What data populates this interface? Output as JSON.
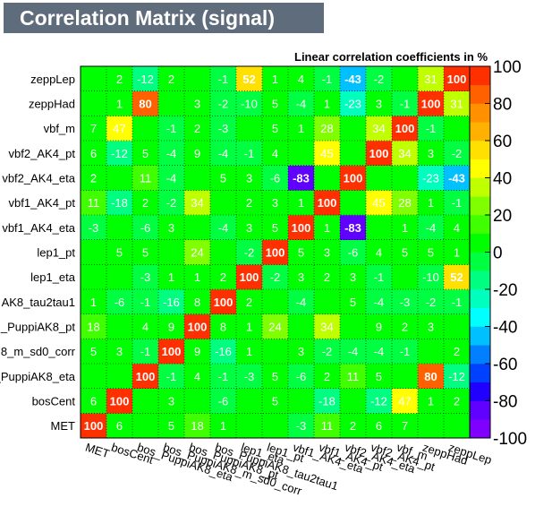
{
  "title": "Correlation Matrix (signal)",
  "subtitle": "Linear correlation coefficients in %",
  "chart_data": {
    "type": "heatmap",
    "title": "Correlation Matrix (signal)",
    "subtitle": "Linear correlation coefficients in %",
    "variables": [
      "MET",
      "bosCent",
      "bos_PuppiAK8_eta",
      "bos_PuppiAK8_m_sd0_corr",
      "bos_PuppiAK8_pt",
      "bos_PuppiAK8_tau2tau1",
      "lep1_eta",
      "lep1_pt",
      "vbf1_AK4_eta",
      "vbf1_AK4_pt",
      "vbf2_AK4_eta",
      "vbf2_AK4_pt",
      "vbf_m",
      "zeppHad",
      "zeppLep"
    ],
    "x_tick_labels": [
      "MET",
      "bosCent",
      "bos_PuppiAK8_eta",
      "bos_PuppiAK8_m_sd0_corr",
      "bos_PuppiAK8_pt",
      "bos_PuppiAK8_tau2tau1",
      "lep1_eta",
      "lep1_pt",
      "vbf1_AK4_eta",
      "vbf1_AK4_pt",
      "vbf2_AK4_eta",
      "vbf2_AK4_pt",
      "vbf_m",
      "zeppHad",
      "zeppLep"
    ],
    "y_tick_labels": [
      "MET",
      "bosCent",
      "_PuppiAK8_eta",
      "8_m_sd0_corr",
      "_PuppiAK8_pt",
      "AK8_tau2tau1",
      "lep1_eta",
      "lep1_pt",
      "vbf1_AK4_eta",
      "vbf1_AK4_pt",
      "vbf2_AK4_eta",
      "vbf2_AK4_pt",
      "vbf_m",
      "zeppHad",
      "zeppLep"
    ],
    "matrix": [
      [
        100,
        6,
        null,
        5,
        18,
        1,
        null,
        null,
        -3,
        11,
        2,
        6,
        7,
        null,
        null
      ],
      [
        6,
        100,
        null,
        3,
        null,
        -6,
        null,
        5,
        null,
        -18,
        null,
        -12,
        47,
        1,
        2
      ],
      [
        null,
        null,
        100,
        -1,
        4,
        -1,
        -3,
        5,
        -6,
        2,
        11,
        5,
        null,
        80,
        -12
      ],
      [
        5,
        3,
        -1,
        100,
        9,
        -16,
        1,
        null,
        3,
        -2,
        -4,
        -4,
        -1,
        null,
        2
      ],
      [
        18,
        null,
        4,
        9,
        100,
        8,
        1,
        24,
        null,
        34,
        null,
        9,
        2,
        3,
        null
      ],
      [
        1,
        -6,
        -1,
        -16,
        8,
        100,
        2,
        null,
        -4,
        null,
        5,
        -4,
        -3,
        -2,
        -1
      ],
      [
        null,
        null,
        -3,
        1,
        1,
        2,
        100,
        -2,
        3,
        2,
        3,
        -1,
        null,
        -10,
        52
      ],
      [
        null,
        5,
        5,
        null,
        24,
        null,
        -2,
        100,
        5,
        3,
        -6,
        4,
        5,
        5,
        1
      ],
      [
        -3,
        null,
        -6,
        3,
        null,
        -4,
        3,
        5,
        100,
        1,
        -83,
        null,
        1,
        -4,
        4
      ],
      [
        11,
        -18,
        2,
        -2,
        34,
        null,
        2,
        3,
        1,
        100,
        null,
        45,
        28,
        1,
        -1
      ],
      [
        2,
        null,
        11,
        -4,
        null,
        5,
        3,
        -6,
        -83,
        null,
        100,
        null,
        null,
        -23,
        -43
      ],
      [
        6,
        -12,
        5,
        -4,
        9,
        -4,
        -1,
        4,
        null,
        45,
        null,
        100,
        34,
        3,
        -2
      ],
      [
        7,
        47,
        null,
        -1,
        2,
        -3,
        null,
        5,
        1,
        28,
        null,
        34,
        100,
        -1,
        null
      ],
      [
        null,
        1,
        80,
        null,
        3,
        -2,
        -10,
        5,
        -4,
        1,
        -23,
        3,
        -1,
        100,
        31
      ],
      [
        null,
        2,
        -12,
        2,
        null,
        -1,
        52,
        1,
        4,
        -1,
        -43,
        -2,
        null,
        31,
        100
      ]
    ],
    "zlim": [
      -100,
      100
    ],
    "z_ticks": [
      -100,
      -80,
      -60,
      -40,
      -20,
      0,
      20,
      40,
      60,
      80,
      100
    ],
    "palette": [
      "#8000ff",
      "#6000ff",
      "#2000ff",
      "#0040ff",
      "#0080ff",
      "#00c0ff",
      "#00ffff",
      "#00ffbf",
      "#00ff80",
      "#00ff40",
      "#00ff00",
      "#40ff00",
      "#80ff00",
      "#c0ff00",
      "#ffff00",
      "#ffe000",
      "#ffb000",
      "#ff9000",
      "#ff6000",
      "#ff3000"
    ],
    "grid": true
  }
}
